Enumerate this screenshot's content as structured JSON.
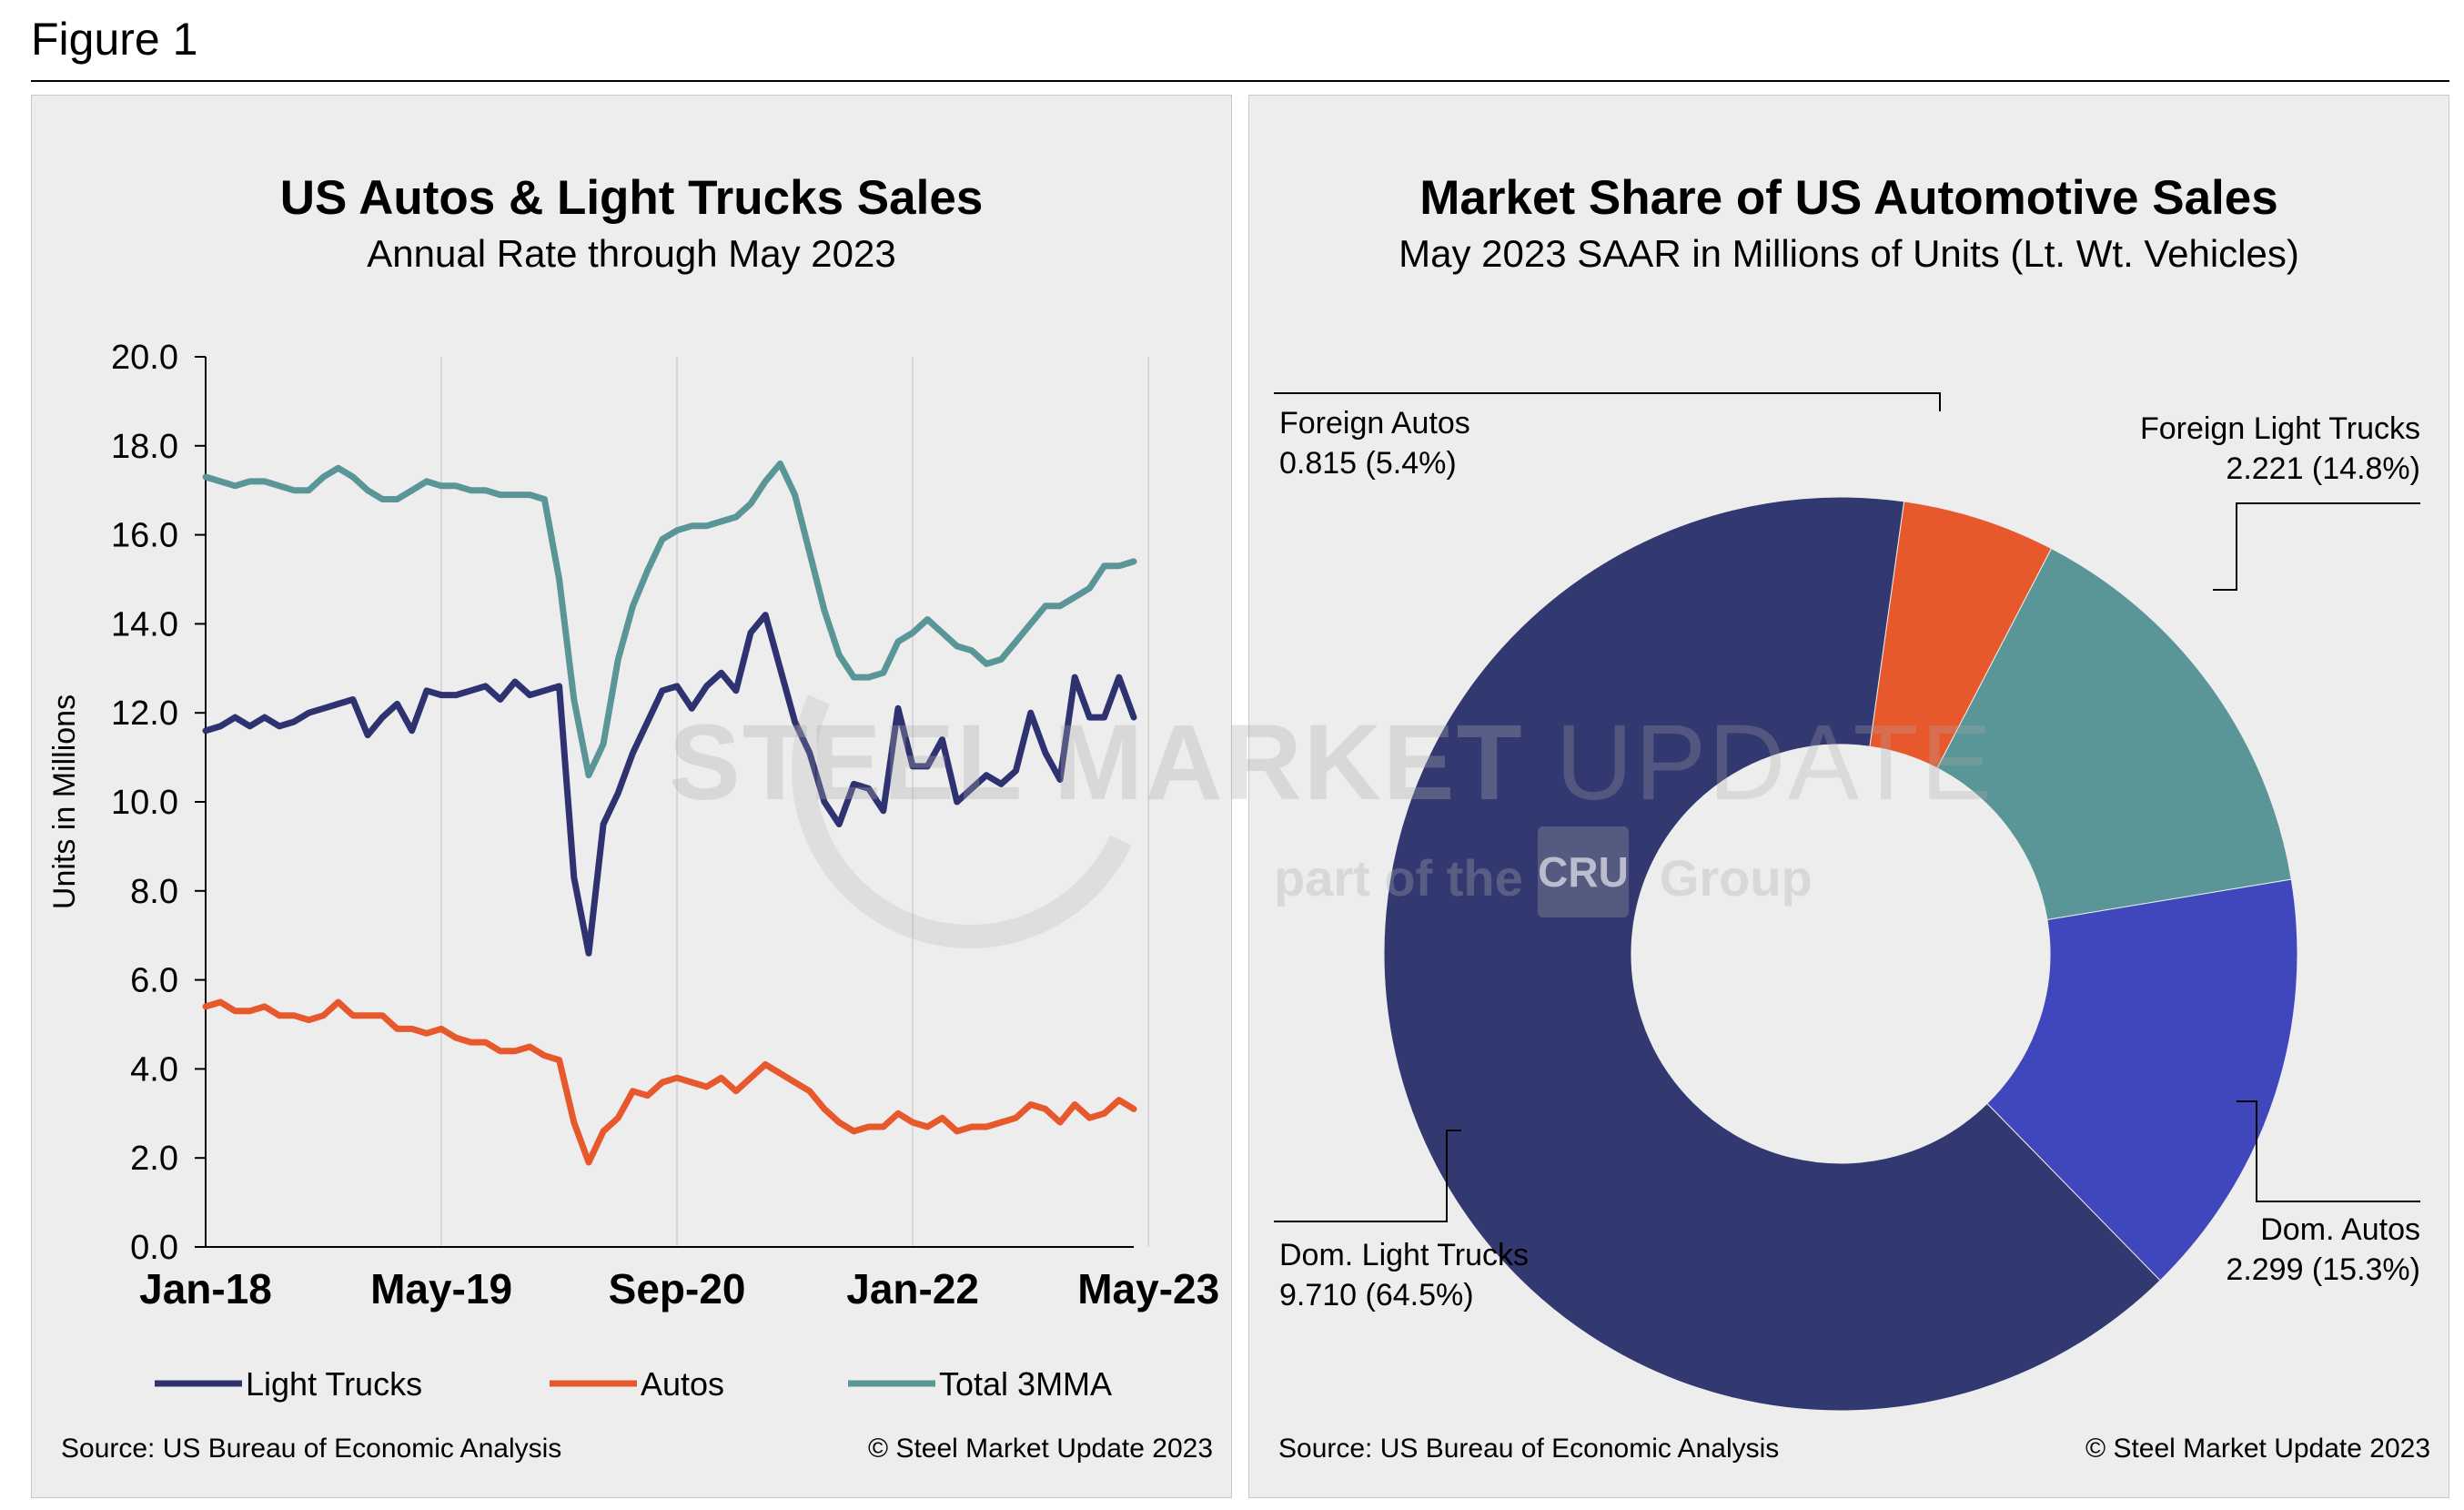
{
  "figure": {
    "title": "Figure 1"
  },
  "left_panel": {
    "title": "US Autos & Light Trucks Sales",
    "subtitle": "Annual Rate through May 2023",
    "source": "Source: US Bureau of Economic Analysis",
    "copyright": "© Steel Market Update 2023"
  },
  "right_panel": {
    "title": "Market Share of US Automotive Sales",
    "subtitle": "May 2023 SAAR in Millions of Units (Lt. Wt. Vehicles)",
    "source": "Source: US Bureau of Economic Analysis",
    "copyright": "© Steel Market Update 2023"
  },
  "watermark": {
    "brand_bold": "STEEL MARKET",
    "brand_thin": " UPDATE",
    "tagline_a": "part of the",
    "logo": "CRU",
    "tagline_b": "Group"
  },
  "chart_data": [
    {
      "type": "line",
      "title": "US Autos & Light Trucks Sales",
      "subtitle": "Annual Rate through May 2023",
      "xlabel": "",
      "ylabel": "Units in Millions",
      "ylim": [
        0,
        20
      ],
      "yticks": [
        "0.0",
        "2.0",
        "4.0",
        "6.0",
        "8.0",
        "10.0",
        "12.0",
        "14.0",
        "16.0",
        "18.0",
        "20.0"
      ],
      "xtick_labels": [
        "Jan-18",
        "May-19",
        "Sep-20",
        "Jan-22",
        "May-23"
      ],
      "xtick_index": [
        0,
        16,
        32,
        48,
        64
      ],
      "grid": "vertical",
      "legend_position": "bottom",
      "colors": {
        "Light Trucks": "#2e3270",
        "Autos": "#e8582d",
        "Total 3MMA": "#5a9597"
      },
      "series": [
        {
          "name": "Light Trucks",
          "values": [
            11.6,
            11.7,
            11.9,
            11.7,
            11.9,
            11.7,
            11.8,
            12.0,
            12.1,
            12.2,
            12.3,
            11.5,
            11.9,
            12.2,
            11.6,
            12.5,
            12.4,
            12.4,
            12.5,
            12.6,
            12.3,
            12.7,
            12.4,
            12.5,
            12.6,
            8.3,
            6.6,
            9.5,
            10.2,
            11.1,
            11.8,
            12.5,
            12.6,
            12.1,
            12.6,
            12.9,
            12.5,
            13.8,
            14.2,
            13.0,
            11.8,
            11.1,
            10.0,
            9.5,
            10.4,
            10.3,
            9.8,
            12.1,
            10.8,
            10.8,
            11.4,
            10.0,
            10.3,
            10.6,
            10.4,
            10.7,
            12.0,
            11.1,
            10.5,
            12.8,
            11.9,
            11.9,
            12.8,
            11.9
          ]
        },
        {
          "name": "Autos",
          "values": [
            5.4,
            5.5,
            5.3,
            5.3,
            5.4,
            5.2,
            5.2,
            5.1,
            5.2,
            5.5,
            5.2,
            5.2,
            5.2,
            4.9,
            4.9,
            4.8,
            4.9,
            4.7,
            4.6,
            4.6,
            4.4,
            4.4,
            4.5,
            4.3,
            4.2,
            2.8,
            1.9,
            2.6,
            2.9,
            3.5,
            3.4,
            3.7,
            3.8,
            3.7,
            3.6,
            3.8,
            3.5,
            3.8,
            4.1,
            3.9,
            3.7,
            3.5,
            3.1,
            2.8,
            2.6,
            2.7,
            2.7,
            3.0,
            2.8,
            2.7,
            2.9,
            2.6,
            2.7,
            2.7,
            2.8,
            2.9,
            3.2,
            3.1,
            2.8,
            3.2,
            2.9,
            3.0,
            3.3,
            3.1
          ]
        },
        {
          "name": "Total 3MMA",
          "values": [
            17.3,
            17.2,
            17.1,
            17.2,
            17.2,
            17.1,
            17.0,
            17.0,
            17.3,
            17.5,
            17.3,
            17.0,
            16.8,
            16.8,
            17.0,
            17.2,
            17.1,
            17.1,
            17.0,
            17.0,
            16.9,
            16.9,
            16.9,
            16.8,
            15.0,
            12.3,
            10.6,
            11.3,
            13.2,
            14.4,
            15.2,
            15.9,
            16.1,
            16.2,
            16.2,
            16.3,
            16.4,
            16.7,
            17.2,
            17.6,
            16.9,
            15.6,
            14.3,
            13.3,
            12.8,
            12.8,
            12.9,
            13.6,
            13.8,
            14.1,
            13.8,
            13.5,
            13.4,
            13.1,
            13.2,
            13.6,
            14.0,
            14.4,
            14.4,
            14.6,
            14.8,
            15.3,
            15.3,
            15.4
          ]
        }
      ]
    },
    {
      "type": "pie",
      "title": "Market Share of US Automotive Sales",
      "subtitle": "May 2023 SAAR in Millions of Units (Lt. Wt. Vehicles)",
      "donut": true,
      "slices": [
        {
          "name": "Foreign Autos",
          "value": 0.815,
          "value_label": "0.815 (5.4%)",
          "percent": 5.4,
          "color": "#e8582d"
        },
        {
          "name": "Foreign Light Trucks",
          "value": 2.221,
          "value_label": "2.221 (14.8%)",
          "percent": 14.8,
          "color": "#5a9597"
        },
        {
          "name": "Dom. Autos",
          "value": 2.299,
          "value_label": "2.299 (15.3%)",
          "percent": 15.3,
          "color": "#4047bd"
        },
        {
          "name": "Dom. Light Trucks",
          "value": 9.71,
          "value_label": "9.710 (64.5%)",
          "percent": 64.5,
          "color": "#323870"
        }
      ]
    }
  ]
}
